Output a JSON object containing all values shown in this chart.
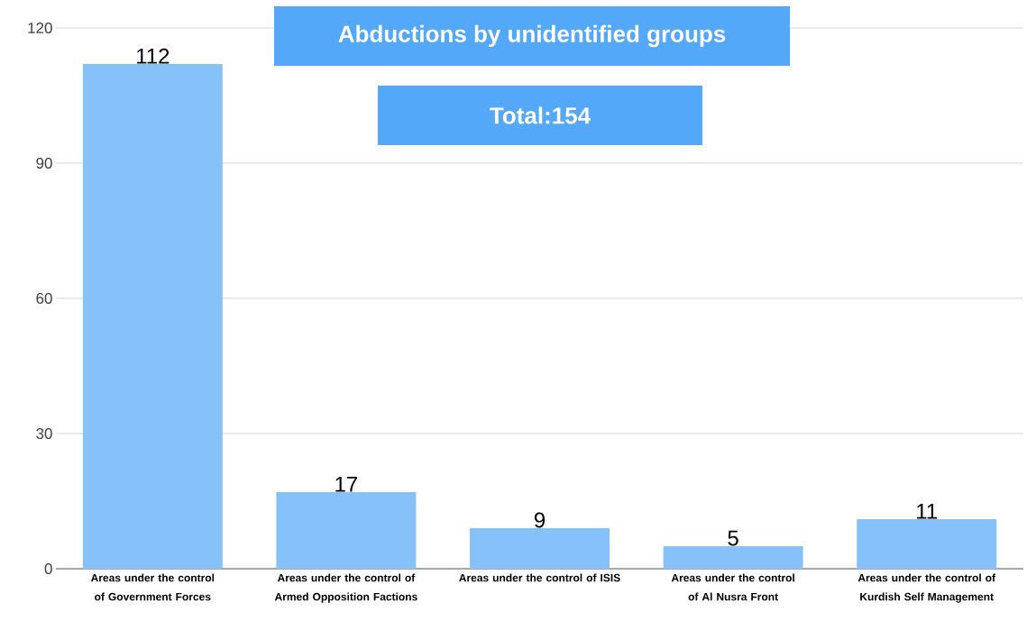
{
  "chart_data": {
    "type": "bar",
    "title": "Abductions by unidentified groups",
    "subtitle": "Total:154",
    "categories": [
      "Areas under the control of Government Forces",
      "Areas under the control of Armed Opposition Factions",
      "Areas under the control of ISIS",
      "Areas under the control of Al Nusra Front",
      "Areas under the control of Kurdish Self Management"
    ],
    "values": [
      112,
      17,
      9,
      5,
      11
    ],
    "color": "#87c1f9",
    "ylim": [
      0,
      120
    ],
    "yticks": [
      0,
      30,
      60,
      90,
      120
    ],
    "grid": "y",
    "data_labels": true
  }
}
